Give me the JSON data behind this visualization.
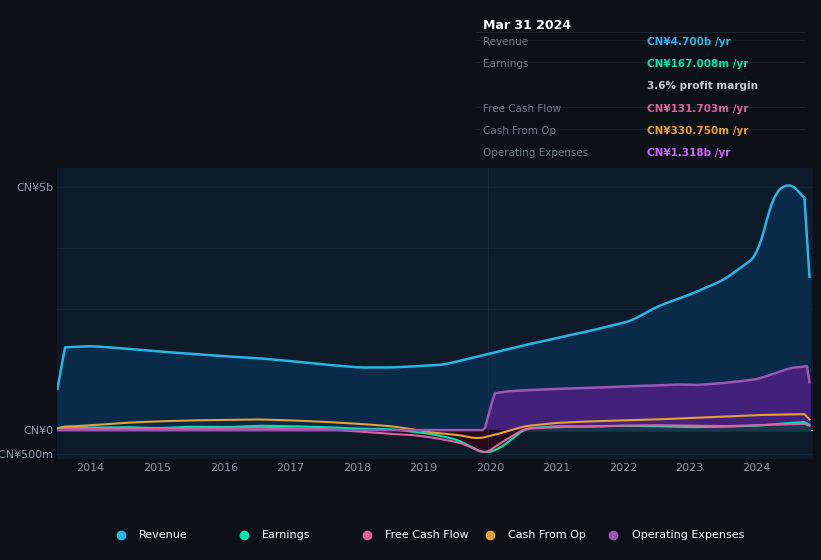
{
  "bg_color": "#0d1117",
  "plot_bg_color": "#0d1b2a",
  "grid_color": "#1e3a5f",
  "ylabel_top": "CN¥5b",
  "ylabel_zero": "CN¥0",
  "ylabel_neg": "-CN¥500m",
  "x_labels": [
    "2014",
    "2015",
    "2016",
    "2017",
    "2018",
    "2019",
    "2020",
    "2021",
    "2022",
    "2023",
    "2024"
  ],
  "ylim": [
    -600,
    5400
  ],
  "legend_items": [
    {
      "label": "Revenue",
      "color": "#29b5e8"
    },
    {
      "label": "Earnings",
      "color": "#00e5b0"
    },
    {
      "label": "Free Cash Flow",
      "color": "#e060a0"
    },
    {
      "label": "Cash From Op",
      "color": "#e8a030"
    },
    {
      "label": "Operating Expenses",
      "color": "#9b59b6"
    }
  ],
  "tooltip": {
    "date": "Mar 31 2024",
    "revenue_label": "Revenue",
    "revenue_val": "CN¥4.700b /yr",
    "revenue_color": "#29b5e8",
    "earnings_label": "Earnings",
    "earnings_val": "CN¥167.008m /yr",
    "earnings_color": "#00e5b0",
    "margin_val": "3.6% profit margin",
    "margin_color": "#ffffff",
    "fcf_label": "Free Cash Flow",
    "fcf_val": "CN¥131.703m /yr",
    "fcf_color": "#e060a0",
    "cop_label": "Cash From Op",
    "cop_val": "CN¥330.750m /yr",
    "cop_color": "#e8a030",
    "opex_label": "Operating Expenses",
    "opex_val": "CN¥1.318b /yr",
    "opex_color": "#cc66ff"
  },
  "revenue_color": "#29b5e8",
  "earnings_color": "#00e5b0",
  "free_cash_flow_color": "#e060a0",
  "cash_from_op_color": "#e8a030",
  "op_expenses_color": "#9b59b6",
  "revenue_fill_color": "#0a2a4a",
  "op_expenses_fill_color": "#4a2080"
}
